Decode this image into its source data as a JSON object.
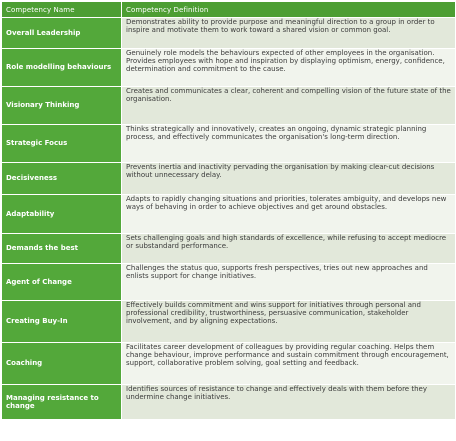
{
  "table": {
    "headers": {
      "name": "Competency Name",
      "definition": "Competency Definition"
    },
    "rows": [
      {
        "name": "Overall Leadership",
        "definition": "Demonstrates ability to provide purpose and meaningful direction to a group in order to inspire and motivate them to work toward a shared vision or common goal."
      },
      {
        "name": "Role modelling behaviours",
        "definition": "Genuinely role models the behaviours expected of other employees in the organisation. Provides employees with hope and inspiration by displaying optimism, energy, confidence, determination and commitment to the cause."
      },
      {
        "name": "Visionary Thinking",
        "definition": "Creates and communicates a clear, coherent and compelling vision of the future state of the organisation."
      },
      {
        "name": "Strategic Focus",
        "definition": "Thinks strategically and innovatively, creates an ongoing, dynamic strategic planning process, and effectively communicates the organisation's long-term direction."
      },
      {
        "name": "Decisiveness",
        "definition": "Prevents inertia and inactivity pervading the organisation by making clear-cut decisions without unnecessary delay."
      },
      {
        "name": "Adaptability",
        "definition": "Adapts to rapidly changing situations and priorities, tolerates ambiguity, and develops new ways of behaving in order to achieve objectives and get around obstacles."
      },
      {
        "name": "Demands the best",
        "definition": "Sets challenging goals and high standards of excellence, while refusing to accept mediocre or substandard performance."
      },
      {
        "name": "Agent of Change",
        "definition": "Challenges the status quo, supports fresh perspectives, tries out new approaches and enlists support for change initiatives."
      },
      {
        "name": "Creating Buy-In",
        "definition": "Effectively builds commitment and wins support for initiatives through personal and professional credibility, trustworthiness, persuasive communication, stakeholder involvement, and by aligning expectations."
      },
      {
        "name": "Coaching",
        "definition": "Facilitates career development of colleagues by providing regular coaching. Helps them change behaviour, improve performance and sustain commitment through encouragement, support, collaborative problem solving, goal setting and feedback."
      },
      {
        "name": "Managing resistance to change",
        "definition": "Identifies sources of resistance to change and effectively deals with them before they undermine change initiatives."
      }
    ]
  }
}
